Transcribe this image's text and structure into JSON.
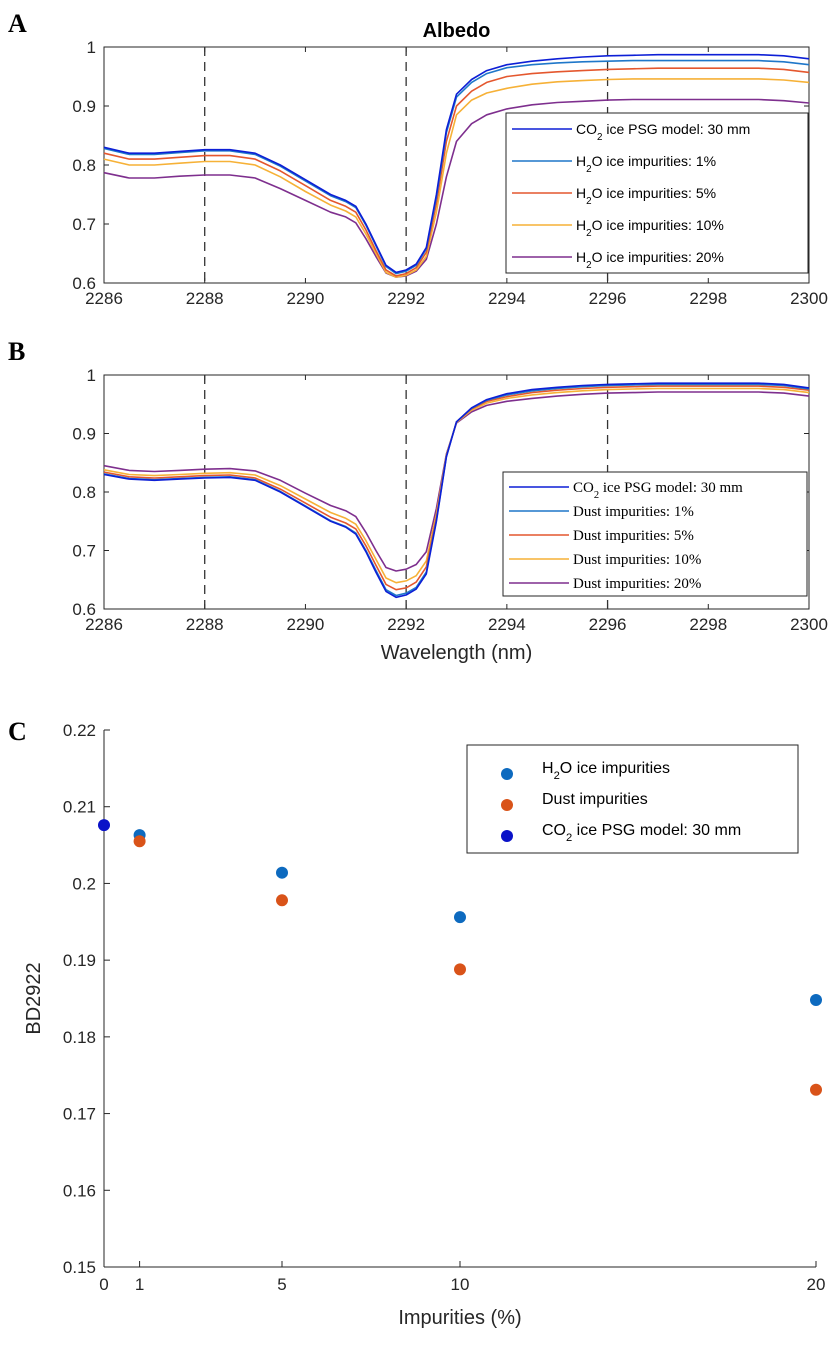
{
  "chart_data": [
    {
      "panel": "A",
      "type": "line",
      "title": "Albedo",
      "xlabel": "",
      "ylabel": "",
      "xlim": [
        2286,
        2300
      ],
      "ylim": [
        0.6,
        1.0
      ],
      "xticks": [
        "2286",
        "2288",
        "2290",
        "2292",
        "2294",
        "2296",
        "2298",
        "2300"
      ],
      "yticks": [
        "0.6",
        "0.7",
        "0.8",
        "0.9",
        "1"
      ],
      "dashed_vlines": [
        2288,
        2292,
        2296
      ],
      "x": [
        2286,
        2286.5,
        2287,
        2287.5,
        2288,
        2288.5,
        2289,
        2289.5,
        2290,
        2290.5,
        2290.8,
        2291,
        2291.2,
        2291.4,
        2291.6,
        2291.8,
        2292,
        2292.2,
        2292.4,
        2292.6,
        2292.8,
        2293,
        2293.3,
        2293.6,
        2294,
        2294.5,
        2295,
        2295.5,
        2296,
        2296.5,
        2297,
        2297.5,
        2298,
        2298.5,
        2299,
        2299.5,
        2300
      ],
      "series": [
        {
          "name": "CO2 ice PSG model: 30 mm",
          "color": "#0d1fd6",
          "values": [
            0.83,
            0.82,
            0.82,
            0.823,
            0.826,
            0.826,
            0.82,
            0.8,
            0.775,
            0.75,
            0.74,
            0.73,
            0.7,
            0.665,
            0.63,
            0.618,
            0.622,
            0.632,
            0.66,
            0.75,
            0.86,
            0.92,
            0.945,
            0.96,
            0.97,
            0.976,
            0.98,
            0.983,
            0.985,
            0.986,
            0.987,
            0.987,
            0.987,
            0.987,
            0.987,
            0.985,
            0.98
          ]
        },
        {
          "name": "H2O ice impurities: 1%",
          "color": "#1f77c9",
          "values": [
            0.828,
            0.818,
            0.818,
            0.821,
            0.824,
            0.824,
            0.818,
            0.798,
            0.773,
            0.748,
            0.738,
            0.728,
            0.698,
            0.663,
            0.628,
            0.616,
            0.62,
            0.63,
            0.658,
            0.745,
            0.855,
            0.915,
            0.94,
            0.955,
            0.965,
            0.97,
            0.973,
            0.975,
            0.976,
            0.977,
            0.977,
            0.977,
            0.977,
            0.977,
            0.977,
            0.975,
            0.97
          ]
        },
        {
          "name": "H2O ice impurities: 5%",
          "color": "#e4572e",
          "values": [
            0.82,
            0.81,
            0.81,
            0.813,
            0.816,
            0.816,
            0.81,
            0.79,
            0.765,
            0.74,
            0.73,
            0.72,
            0.69,
            0.655,
            0.622,
            0.612,
            0.616,
            0.626,
            0.652,
            0.735,
            0.84,
            0.9,
            0.925,
            0.94,
            0.95,
            0.955,
            0.958,
            0.96,
            0.962,
            0.963,
            0.964,
            0.964,
            0.964,
            0.964,
            0.964,
            0.962,
            0.957
          ]
        },
        {
          "name": "H2O ice impurities: 10%",
          "color": "#f6b137",
          "values": [
            0.81,
            0.8,
            0.8,
            0.803,
            0.806,
            0.806,
            0.8,
            0.78,
            0.755,
            0.732,
            0.722,
            0.712,
            0.683,
            0.65,
            0.618,
            0.61,
            0.613,
            0.622,
            0.645,
            0.72,
            0.82,
            0.885,
            0.91,
            0.922,
            0.93,
            0.937,
            0.941,
            0.943,
            0.945,
            0.946,
            0.946,
            0.946,
            0.946,
            0.946,
            0.946,
            0.944,
            0.94
          ]
        },
        {
          "name": "H2O ice impurities: 20%",
          "color": "#7e2f8e",
          "values": [
            0.787,
            0.778,
            0.778,
            0.781,
            0.783,
            0.783,
            0.778,
            0.76,
            0.74,
            0.72,
            0.712,
            0.702,
            0.675,
            0.645,
            0.617,
            0.61,
            0.612,
            0.62,
            0.64,
            0.7,
            0.78,
            0.84,
            0.87,
            0.885,
            0.895,
            0.902,
            0.906,
            0.908,
            0.91,
            0.911,
            0.911,
            0.911,
            0.911,
            0.911,
            0.911,
            0.909,
            0.905
          ]
        }
      ],
      "legend_location": "right",
      "legend": [
        {
          "pre": "CO",
          "sub": "2",
          "post": " ice PSG model: 30 mm",
          "color": "#0d1fd6"
        },
        {
          "pre": "H",
          "sub": "2",
          "post": "O ice impurities: 1%",
          "color": "#1f77c9"
        },
        {
          "pre": "H",
          "sub": "2",
          "post": "O ice impurities: 5%",
          "color": "#e4572e"
        },
        {
          "pre": "H",
          "sub": "2",
          "post": "O ice impurities: 10%",
          "color": "#f6b137"
        },
        {
          "pre": "H",
          "sub": "2",
          "post": "O ice impurities: 20%",
          "color": "#7e2f8e"
        }
      ]
    },
    {
      "panel": "B",
      "type": "line",
      "title": "",
      "xlabel": "Wavelength (nm)",
      "ylabel": "",
      "xlim": [
        2286,
        2300
      ],
      "ylim": [
        0.6,
        1.0
      ],
      "xticks": [
        "2286",
        "2288",
        "2290",
        "2292",
        "2294",
        "2296",
        "2298",
        "2300"
      ],
      "yticks": [
        "0.6",
        "0.7",
        "0.8",
        "0.9",
        "1"
      ],
      "dashed_vlines": [
        2288,
        2292,
        2296
      ],
      "x": [
        2286,
        2286.5,
        2287,
        2287.5,
        2288,
        2288.5,
        2289,
        2289.5,
        2290,
        2290.5,
        2290.8,
        2291,
        2291.2,
        2291.4,
        2291.6,
        2291.8,
        2292,
        2292.2,
        2292.4,
        2292.6,
        2292.8,
        2293,
        2293.3,
        2293.6,
        2294,
        2294.5,
        2295,
        2295.5,
        2296,
        2296.5,
        2297,
        2297.5,
        2298,
        2298.5,
        2299,
        2299.5,
        2300
      ],
      "series": [
        {
          "name": "CO2 ice PSG model: 30 mm",
          "color": "#0d1fd6",
          "values": [
            0.83,
            0.822,
            0.82,
            0.822,
            0.824,
            0.825,
            0.82,
            0.8,
            0.775,
            0.75,
            0.74,
            0.728,
            0.698,
            0.663,
            0.63,
            0.62,
            0.624,
            0.634,
            0.66,
            0.75,
            0.86,
            0.92,
            0.944,
            0.958,
            0.968,
            0.975,
            0.979,
            0.982,
            0.984,
            0.985,
            0.986,
            0.986,
            0.986,
            0.986,
            0.986,
            0.984,
            0.978
          ]
        },
        {
          "name": "Dust impurities: 1%",
          "color": "#1f77c9",
          "values": [
            0.831,
            0.823,
            0.821,
            0.823,
            0.825,
            0.826,
            0.821,
            0.801,
            0.776,
            0.751,
            0.741,
            0.73,
            0.7,
            0.666,
            0.633,
            0.623,
            0.627,
            0.637,
            0.663,
            0.752,
            0.861,
            0.92,
            0.943,
            0.957,
            0.966,
            0.973,
            0.977,
            0.98,
            0.982,
            0.983,
            0.984,
            0.984,
            0.984,
            0.984,
            0.984,
            0.982,
            0.976
          ]
        },
        {
          "name": "Dust impurities: 5%",
          "color": "#e4572e",
          "values": [
            0.834,
            0.826,
            0.824,
            0.826,
            0.828,
            0.829,
            0.824,
            0.805,
            0.781,
            0.757,
            0.747,
            0.737,
            0.708,
            0.675,
            0.642,
            0.633,
            0.636,
            0.646,
            0.672,
            0.756,
            0.862,
            0.92,
            0.942,
            0.955,
            0.963,
            0.97,
            0.974,
            0.977,
            0.979,
            0.98,
            0.981,
            0.981,
            0.981,
            0.981,
            0.981,
            0.979,
            0.974
          ]
        },
        {
          "name": "Dust impurities: 10%",
          "color": "#f6b137",
          "values": [
            0.838,
            0.83,
            0.828,
            0.83,
            0.832,
            0.833,
            0.829,
            0.811,
            0.788,
            0.765,
            0.755,
            0.745,
            0.717,
            0.685,
            0.653,
            0.645,
            0.648,
            0.657,
            0.682,
            0.762,
            0.863,
            0.919,
            0.94,
            0.952,
            0.96,
            0.966,
            0.97,
            0.973,
            0.975,
            0.976,
            0.977,
            0.977,
            0.977,
            0.977,
            0.977,
            0.975,
            0.97
          ]
        },
        {
          "name": "Dust impurities: 20%",
          "color": "#7e2f8e",
          "values": [
            0.845,
            0.837,
            0.835,
            0.837,
            0.839,
            0.84,
            0.836,
            0.82,
            0.798,
            0.777,
            0.768,
            0.758,
            0.731,
            0.7,
            0.671,
            0.665,
            0.668,
            0.676,
            0.698,
            0.772,
            0.865,
            0.918,
            0.937,
            0.948,
            0.955,
            0.96,
            0.964,
            0.967,
            0.969,
            0.97,
            0.971,
            0.971,
            0.971,
            0.971,
            0.971,
            0.969,
            0.964
          ]
        }
      ],
      "legend_location": "right",
      "legend": [
        {
          "pre": "CO",
          "sub": "2",
          "post": " ice PSG model: 30 mm",
          "color": "#0d1fd6"
        },
        {
          "pre": "Dust impurities: 1%",
          "sub": "",
          "post": "",
          "color": "#1f77c9"
        },
        {
          "pre": "Dust impurities: 5%",
          "sub": "",
          "post": "",
          "color": "#e4572e"
        },
        {
          "pre": "Dust impurities: 10%",
          "sub": "",
          "post": "",
          "color": "#f6b137"
        },
        {
          "pre": "Dust impurities: 20%",
          "sub": "",
          "post": "",
          "color": "#7e2f8e"
        }
      ]
    },
    {
      "panel": "C",
      "type": "scatter",
      "title": "",
      "xlabel": "Impurities (%)",
      "ylabel": "BD2922",
      "xlim": [
        0,
        20
      ],
      "ylim": [
        0.15,
        0.22
      ],
      "xticks": [
        "0",
        "1",
        "5",
        "10",
        "20"
      ],
      "xtick_values": [
        0,
        1,
        5,
        10,
        20
      ],
      "yticks": [
        "0.15",
        "0.16",
        "0.17",
        "0.18",
        "0.19",
        "0.2",
        "0.21",
        "0.22"
      ],
      "series": [
        {
          "name": "H2O ice impurities",
          "color": "#0d6abf",
          "x": [
            1,
            5,
            10,
            20
          ],
          "values": [
            0.2063,
            0.2014,
            0.1956,
            0.1848
          ]
        },
        {
          "name": "Dust impurities",
          "color": "#d95319",
          "x": [
            1,
            5,
            10,
            20
          ],
          "values": [
            0.2055,
            0.1978,
            0.1888,
            0.1731
          ]
        },
        {
          "name": "CO2 ice PSG model: 30 mm",
          "color": "#0a12c8",
          "x": [
            0
          ],
          "values": [
            0.2076
          ]
        }
      ],
      "legend_location": "top-right",
      "legend": [
        {
          "pre": "H",
          "sub": "2",
          "post": "O ice impurities",
          "color": "#0d6abf"
        },
        {
          "pre": "Dust impurities",
          "sub": "",
          "post": "",
          "color": "#d95319"
        },
        {
          "pre": "CO",
          "sub": "2",
          "post": " ice PSG model: 30 mm",
          "color": "#0a12c8"
        }
      ]
    }
  ]
}
